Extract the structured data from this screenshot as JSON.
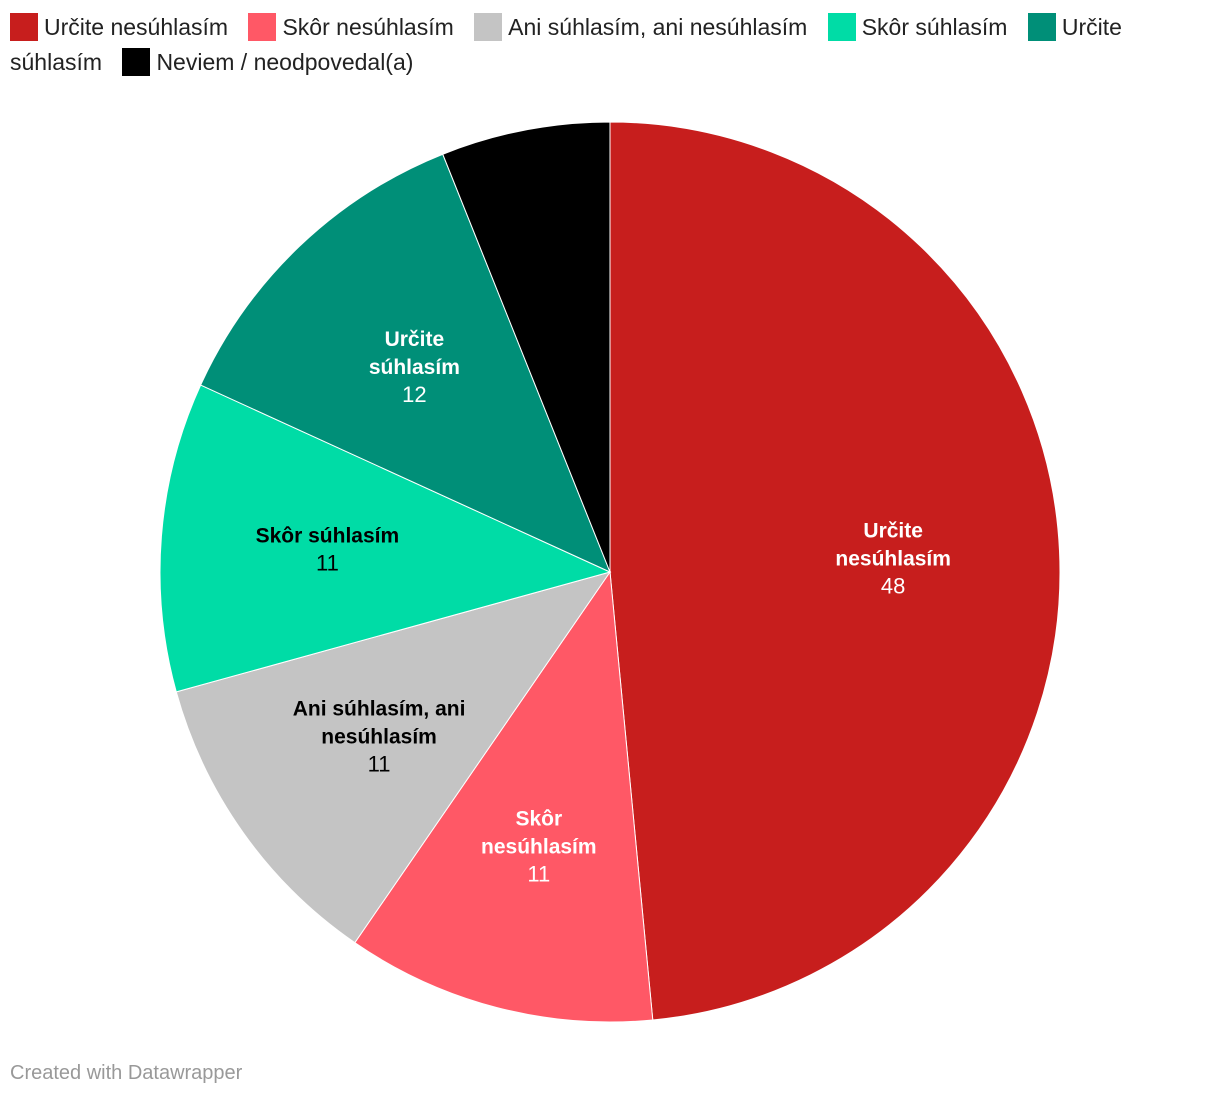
{
  "chart_data": {
    "type": "pie",
    "title": "",
    "start_angle_deg": 0,
    "direction": "clockwise",
    "slices": [
      {
        "label": "Určite nesúhlasím",
        "value": 48,
        "value_label": "48",
        "color": "#c71e1d",
        "label_color": "#ffffff",
        "show_label": true
      },
      {
        "label": "Skôr nesúhlasím",
        "value": 11,
        "value_label": "11",
        "color": "#ff5866",
        "label_color": "#ffffff",
        "show_label": true
      },
      {
        "label": "Ani súhlasím, ani nesúhlasím",
        "value": 11,
        "value_label": "11",
        "color": "#c4c4c4",
        "label_color": "#000000",
        "show_label": true
      },
      {
        "label": "Skôr súhlasím",
        "value": 11,
        "value_label": "11",
        "color": "#00dca6",
        "label_color": "#000000",
        "show_label": true
      },
      {
        "label": "Určite súhlasím",
        "value": 12,
        "value_label": "12",
        "color": "#008f78",
        "label_color": "#ffffff",
        "show_label": true
      },
      {
        "label": "Neviem / neodpovedal(a)",
        "value": 6,
        "value_label": "6",
        "color": "#000000",
        "label_color": "#ffffff",
        "show_label": false
      }
    ],
    "legend": {
      "placement": "top-left"
    }
  },
  "footer": {
    "credit": "Created with Datawrapper"
  }
}
